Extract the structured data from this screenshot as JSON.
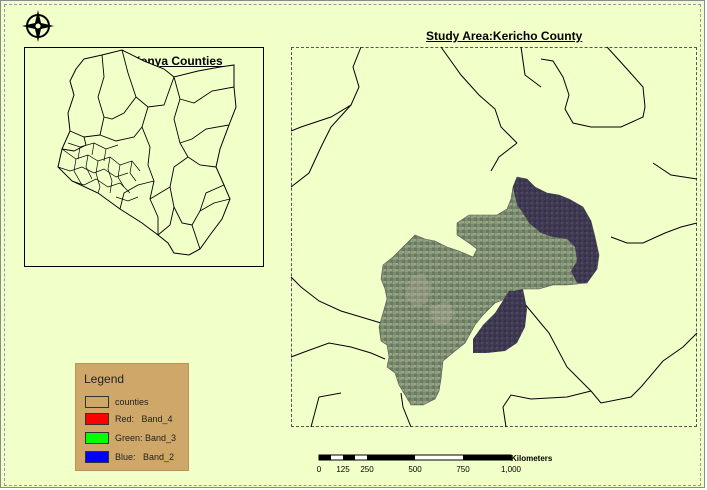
{
  "inset_map": {
    "title": "Kenya Counties"
  },
  "main_map": {
    "title": "Study Area:Kericho County"
  },
  "legend": {
    "title": "Legend",
    "items": [
      {
        "label": "counties",
        "color": "#cfa869"
      },
      {
        "label": "Red:   Band_4",
        "color": "#ff0000"
      },
      {
        "label": "Green: Band_3",
        "color": "#00ff00"
      },
      {
        "label": "Blue:   Band_2",
        "color": "#0000ff"
      }
    ]
  },
  "scale_bar": {
    "unit": "Kilometers",
    "ticks": [
      "0",
      "125",
      "250",
      "500",
      "750",
      "1,000"
    ]
  },
  "north_arrow": {
    "icon": "north-arrow-icon"
  }
}
